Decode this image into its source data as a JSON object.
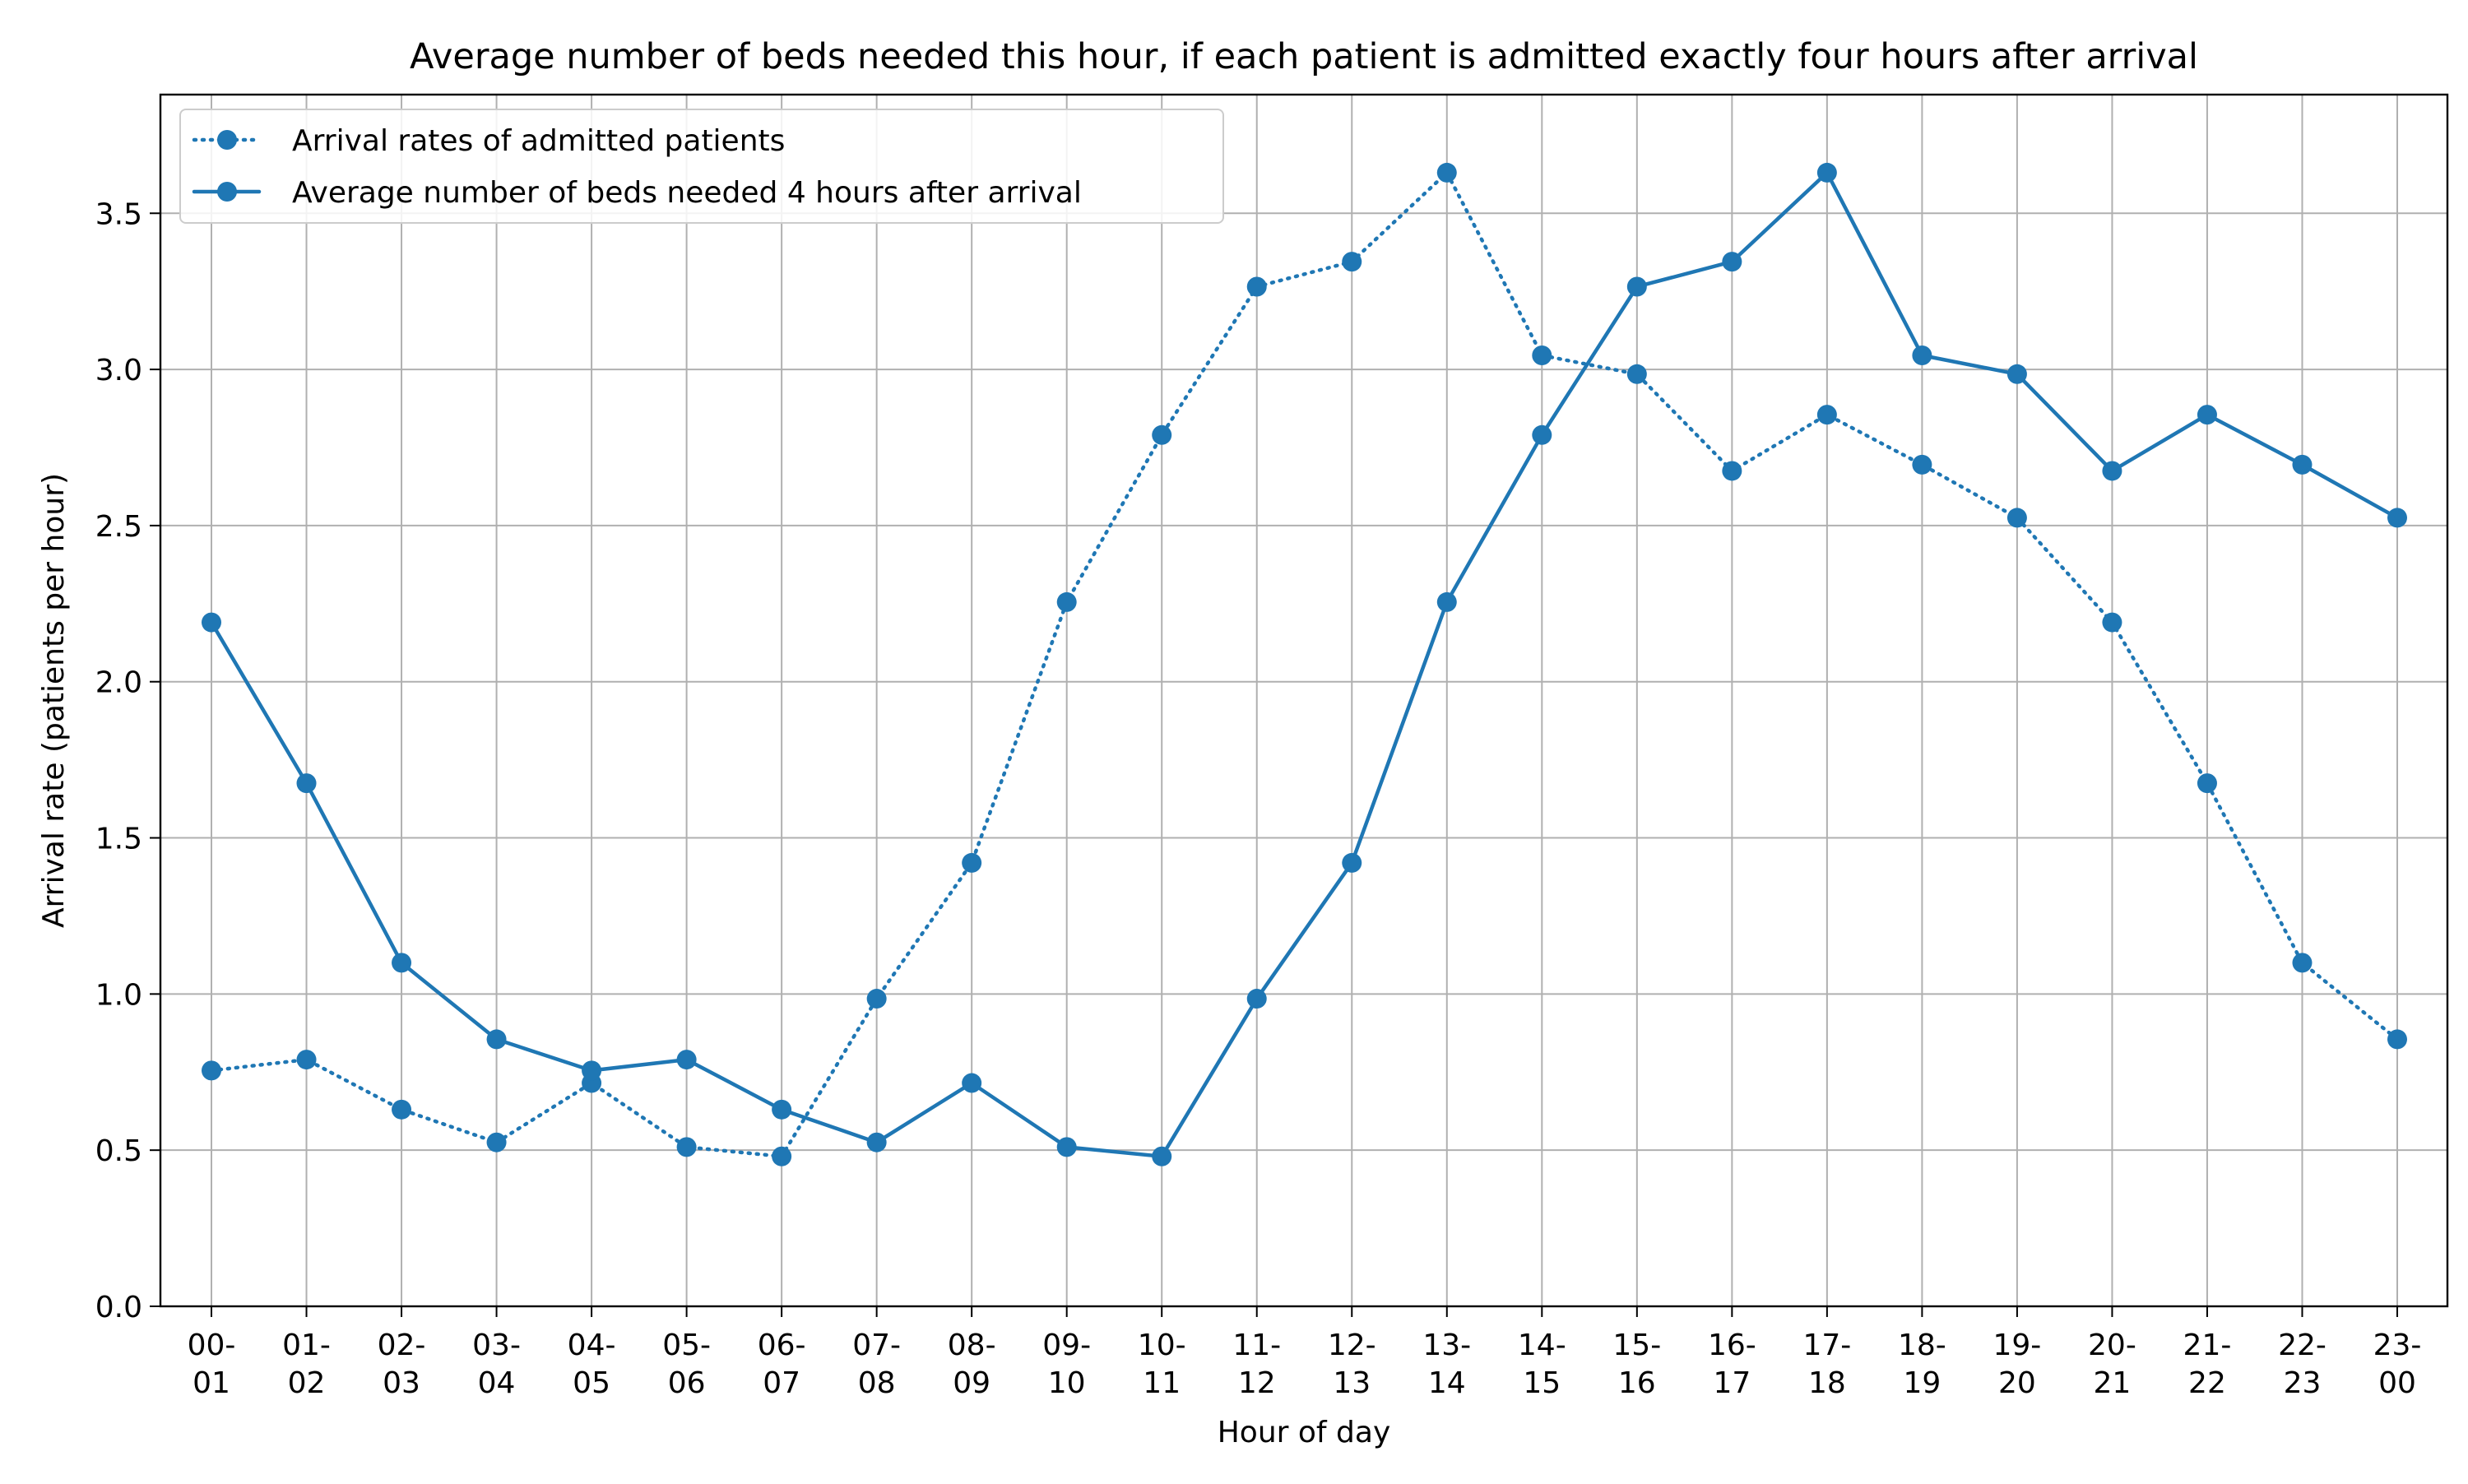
{
  "chart_data": {
    "type": "line",
    "title": "Average number of beds needed this hour, if each patient is admitted exactly four hours after arrival",
    "xlabel": "Hour of day",
    "ylabel": "Arrival rate (patients per hour)",
    "ylim": [
      0,
      3.88
    ],
    "yticks": [
      "0.0",
      "0.5",
      "1.0",
      "1.5",
      "2.0",
      "2.5",
      "3.0",
      "3.5"
    ],
    "ytick_values": [
      0,
      0.5,
      1.0,
      1.5,
      2.0,
      2.5,
      3.0,
      3.5
    ],
    "grid": true,
    "legend_position": "top-left",
    "categories": [
      "00-01",
      "01-02",
      "02-03",
      "03-04",
      "04-05",
      "05-06",
      "06-07",
      "07-08",
      "08-09",
      "09-10",
      "10-11",
      "11-12",
      "12-13",
      "13-14",
      "14-15",
      "15-16",
      "16-17",
      "17-18",
      "18-19",
      "19-20",
      "20-21",
      "21-22",
      "22-23",
      "23-00"
    ],
    "category_labels": [
      [
        "00-",
        "01"
      ],
      [
        "01-",
        "02"
      ],
      [
        "02-",
        "03"
      ],
      [
        "03-",
        "04"
      ],
      [
        "04-",
        "05"
      ],
      [
        "05-",
        "06"
      ],
      [
        "06-",
        "07"
      ],
      [
        "07-",
        "08"
      ],
      [
        "08-",
        "09"
      ],
      [
        "09-",
        "10"
      ],
      [
        "10-",
        "11"
      ],
      [
        "11-",
        "12"
      ],
      [
        "12-",
        "13"
      ],
      [
        "13-",
        "14"
      ],
      [
        "14-",
        "15"
      ],
      [
        "15-",
        "16"
      ],
      [
        "16-",
        "17"
      ],
      [
        "17-",
        "18"
      ],
      [
        "18-",
        "19"
      ],
      [
        "19-",
        "20"
      ],
      [
        "20-",
        "21"
      ],
      [
        "21-",
        "22"
      ],
      [
        "22-",
        "23"
      ],
      [
        "23-",
        "00"
      ]
    ],
    "series": [
      {
        "name": "Arrival rates of admitted patients",
        "style": "dotted",
        "color": "#1f77b4",
        "values": [
          0.755,
          0.79,
          0.63,
          0.525,
          0.715,
          0.51,
          0.48,
          0.985,
          1.42,
          2.255,
          2.79,
          3.265,
          3.345,
          3.63,
          3.045,
          2.985,
          2.675,
          2.855,
          2.695,
          2.525,
          2.19,
          1.675,
          1.1,
          0.855
        ]
      },
      {
        "name": "Average number of beds needed 4 hours after arrival",
        "style": "solid",
        "color": "#1f77b4",
        "values": [
          2.19,
          1.675,
          1.1,
          0.855,
          0.755,
          0.79,
          0.63,
          0.525,
          0.715,
          0.51,
          0.48,
          0.985,
          1.42,
          2.255,
          2.79,
          3.265,
          3.345,
          3.63,
          3.045,
          2.985,
          2.675,
          2.855,
          2.695,
          2.525
        ]
      }
    ]
  },
  "colors": {
    "series": "#1f77b4",
    "grid": "#b0b0b0",
    "axes": "#000000",
    "legend_border": "#cccccc"
  }
}
